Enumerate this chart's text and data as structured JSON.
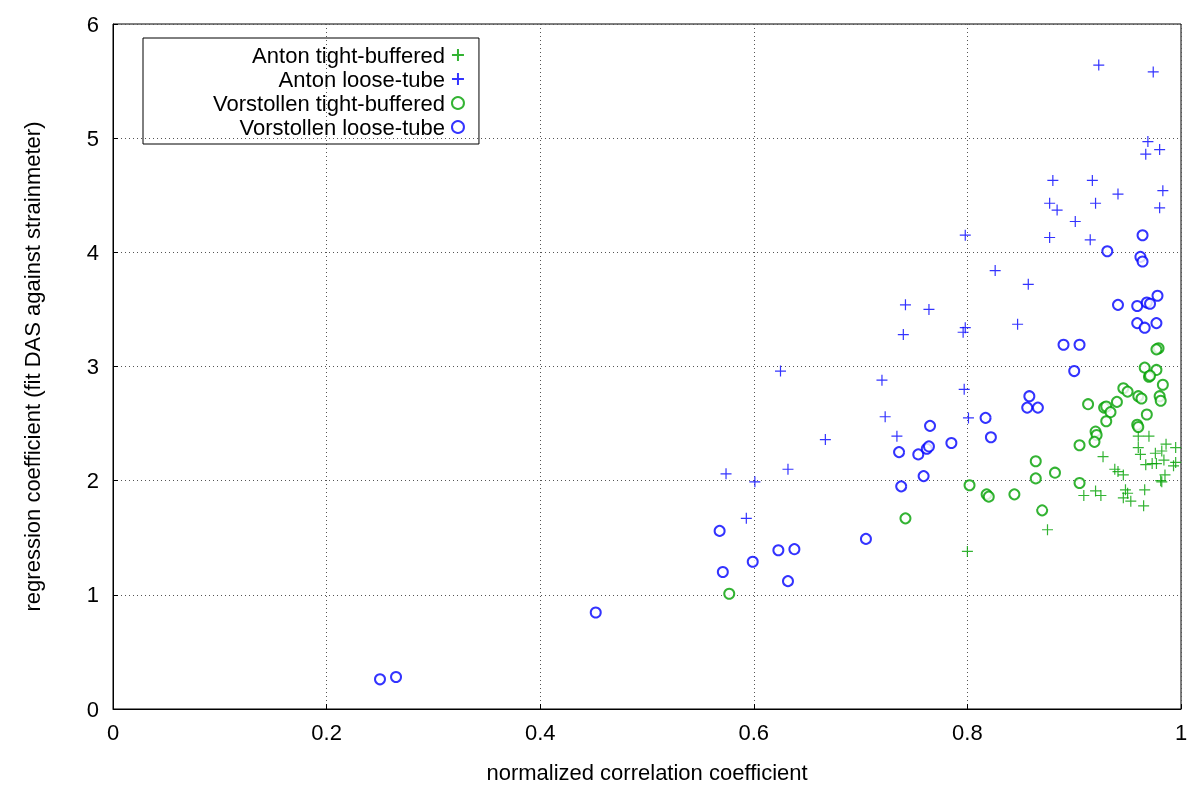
{
  "chart_data": {
    "type": "scatter",
    "xlabel": "normalized correlation coefficient",
    "ylabel": "regression coefficient (fit DAS against strainmeter)",
    "xlim": [
      0,
      1
    ],
    "ylim": [
      0,
      6
    ],
    "xticks": [
      0,
      0.2,
      0.4,
      0.6,
      0.8,
      1
    ],
    "yticks": [
      0,
      1,
      2,
      3,
      4,
      5,
      6
    ],
    "grid": true,
    "legend": "top left",
    "series": [
      {
        "name": "Anton tight-buffered",
        "color": "#00a000",
        "marker": "cross",
        "x": [
          0.96,
          0.97,
          0.96,
          0.962,
          0.986,
          0.995,
          0.982,
          0.976,
          0.927,
          0.984,
          0.967,
          0.973,
          0.977,
          0.995,
          0.993,
          0.938,
          0.941,
          0.946,
          0.985,
          0.981,
          0.982,
          0.966,
          0.948,
          0.95,
          0.909,
          0.92,
          0.925,
          0.946,
          0.953,
          0.965,
          0.875,
          0.8
        ],
        "values": [
          2.39,
          2.39,
          2.29,
          2.23,
          2.32,
          2.29,
          2.26,
          2.24,
          2.21,
          2.18,
          2.14,
          2.15,
          2.15,
          2.16,
          2.13,
          2.1,
          2.08,
          2.05,
          2.05,
          2.0,
          1.99,
          1.92,
          1.92,
          1.89,
          1.87,
          1.91,
          1.87,
          1.85,
          1.82,
          1.78,
          1.57,
          1.38
        ]
      },
      {
        "name": "Anton loose-tube",
        "color": "#0000ff",
        "marker": "cross",
        "x": [
          0.923,
          0.974,
          0.969,
          0.98,
          0.967,
          0.88,
          0.917,
          0.941,
          0.983,
          0.877,
          0.92,
          0.884,
          0.98,
          0.901,
          0.877,
          0.915,
          0.798,
          0.826,
          0.857,
          0.742,
          0.764,
          0.74,
          0.798,
          0.796,
          0.847,
          0.625,
          0.72,
          0.797,
          0.723,
          0.801,
          0.667,
          0.734,
          0.632,
          0.574,
          0.601,
          0.593
        ],
        "values": [
          5.64,
          5.58,
          4.97,
          4.9,
          4.86,
          4.63,
          4.63,
          4.51,
          4.54,
          4.43,
          4.43,
          4.37,
          4.39,
          4.27,
          4.13,
          4.11,
          4.15,
          3.84,
          3.72,
          3.54,
          3.5,
          3.28,
          3.34,
          3.3,
          3.37,
          2.96,
          2.88,
          2.8,
          2.56,
          2.55,
          2.36,
          2.39,
          2.1,
          2.06,
          1.99,
          1.67
        ]
      },
      {
        "name": "Vorstollen tight-buffered",
        "color": "#00a000",
        "marker": "circle",
        "x": [
          0.979,
          0.977,
          0.966,
          0.977,
          0.97,
          0.971,
          0.983,
          0.946,
          0.95,
          0.96,
          0.963,
          0.98,
          0.981,
          0.913,
          0.94,
          0.928,
          0.93,
          0.934,
          0.93,
          0.968,
          0.959,
          0.96,
          0.92,
          0.921,
          0.919,
          0.905,
          0.864,
          0.882,
          0.864,
          0.905,
          0.802,
          0.818,
          0.82,
          0.844,
          0.87,
          0.742,
          0.577
        ],
        "values": [
          3.16,
          3.15,
          2.99,
          2.97,
          2.91,
          2.92,
          2.84,
          2.81,
          2.78,
          2.74,
          2.72,
          2.74,
          2.7,
          2.67,
          2.69,
          2.64,
          2.65,
          2.6,
          2.52,
          2.58,
          2.49,
          2.47,
          2.43,
          2.4,
          2.34,
          2.31,
          2.17,
          2.07,
          2.02,
          1.98,
          1.96,
          1.88,
          1.86,
          1.88,
          1.74,
          1.67,
          1.01
        ]
      },
      {
        "name": "Vorstollen loose-tube",
        "color": "#0000ff",
        "marker": "circle",
        "x": [
          0.964,
          0.931,
          0.962,
          0.964,
          0.978,
          0.941,
          0.959,
          0.968,
          0.971,
          0.959,
          0.966,
          0.977,
          0.89,
          0.905,
          0.9,
          0.858,
          0.856,
          0.866,
          0.765,
          0.817,
          0.822,
          0.736,
          0.754,
          0.762,
          0.764,
          0.785,
          0.759,
          0.738,
          0.705,
          0.568,
          0.623,
          0.638,
          0.599,
          0.571,
          0.632,
          0.452,
          0.25,
          0.265
        ],
        "values": [
          4.15,
          4.01,
          3.96,
          3.92,
          3.62,
          3.54,
          3.53,
          3.56,
          3.55,
          3.38,
          3.34,
          3.38,
          3.19,
          3.19,
          2.96,
          2.74,
          2.64,
          2.64,
          2.48,
          2.55,
          2.38,
          2.25,
          2.23,
          2.28,
          2.3,
          2.33,
          2.04,
          1.95,
          1.49,
          1.56,
          1.39,
          1.4,
          1.29,
          1.2,
          1.12,
          0.845,
          0.26,
          0.28
        ]
      }
    ]
  }
}
